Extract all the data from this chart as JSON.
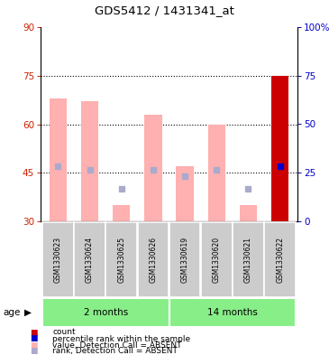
{
  "title": "GDS5412 / 1431341_at",
  "samples": [
    "GSM1330623",
    "GSM1330624",
    "GSM1330625",
    "GSM1330626",
    "GSM1330619",
    "GSM1330620",
    "GSM1330621",
    "GSM1330622"
  ],
  "pink_bar_tops": [
    68,
    67,
    35,
    63,
    47,
    60,
    35,
    75
  ],
  "blue_sq_tops": [
    47,
    46,
    40,
    46,
    44,
    46,
    40,
    47
  ],
  "bar_bottom": 30,
  "red_bar_idx": 7,
  "blue_dot_idx": 7,
  "age_groups": [
    {
      "label": "2 months",
      "start": 0,
      "end": 3
    },
    {
      "label": "14 months",
      "start": 4,
      "end": 7
    }
  ],
  "left_ylim": [
    30,
    90
  ],
  "left_yticks": [
    30,
    45,
    60,
    75,
    90
  ],
  "right_ylim": [
    0,
    100
  ],
  "right_yticks": [
    0,
    25,
    50,
    75,
    100
  ],
  "right_yticklabels": [
    "0",
    "25",
    "50",
    "75",
    "100%"
  ],
  "left_tick_color": "#cc2200",
  "right_tick_color": "#0000cc",
  "pink_bar_color": "#ffb0b0",
  "blue_sq_color": "#aaaacc",
  "red_bar_color": "#cc0000",
  "blue_dot_color": "#0000cc",
  "sample_box_color": "#cccccc",
  "age_box_color": "#88ee88",
  "legend_items": [
    {
      "color": "#cc0000",
      "label": "count"
    },
    {
      "color": "#0000cc",
      "label": "percentile rank within the sample"
    },
    {
      "color": "#ffb0b0",
      "label": "value, Detection Call = ABSENT"
    },
    {
      "color": "#aaaacc",
      "label": "rank, Detection Call = ABSENT"
    }
  ]
}
